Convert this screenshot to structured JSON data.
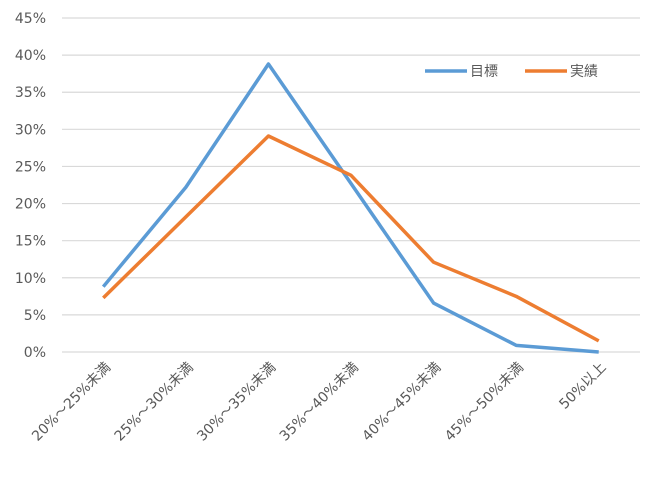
{
  "chart_data": {
    "type": "line",
    "title": "",
    "xlabel": "",
    "ylabel": "",
    "categories": [
      "20%～25%未満",
      "25%～30%未満",
      "30%～35%未満",
      "35%～40%未満",
      "40%～45%未満",
      "45%～50%未満",
      "50%以上"
    ],
    "yticks": [
      "0%",
      "5%",
      "10%",
      "15%",
      "20%",
      "25%",
      "30%",
      "35%",
      "40%",
      "45%"
    ],
    "ylim": [
      0,
      45
    ],
    "grid": true,
    "legend_position": "top-right",
    "series": [
      {
        "name": "目標",
        "color": "#5B9BD5",
        "values": [
          8.8,
          22.2,
          38.8,
          22.7,
          6.6,
          0.9,
          0.0
        ]
      },
      {
        "name": "実績",
        "color": "#ED7D31",
        "values": [
          7.3,
          18.2,
          29.1,
          23.8,
          12.1,
          7.5,
          1.5
        ]
      }
    ]
  }
}
